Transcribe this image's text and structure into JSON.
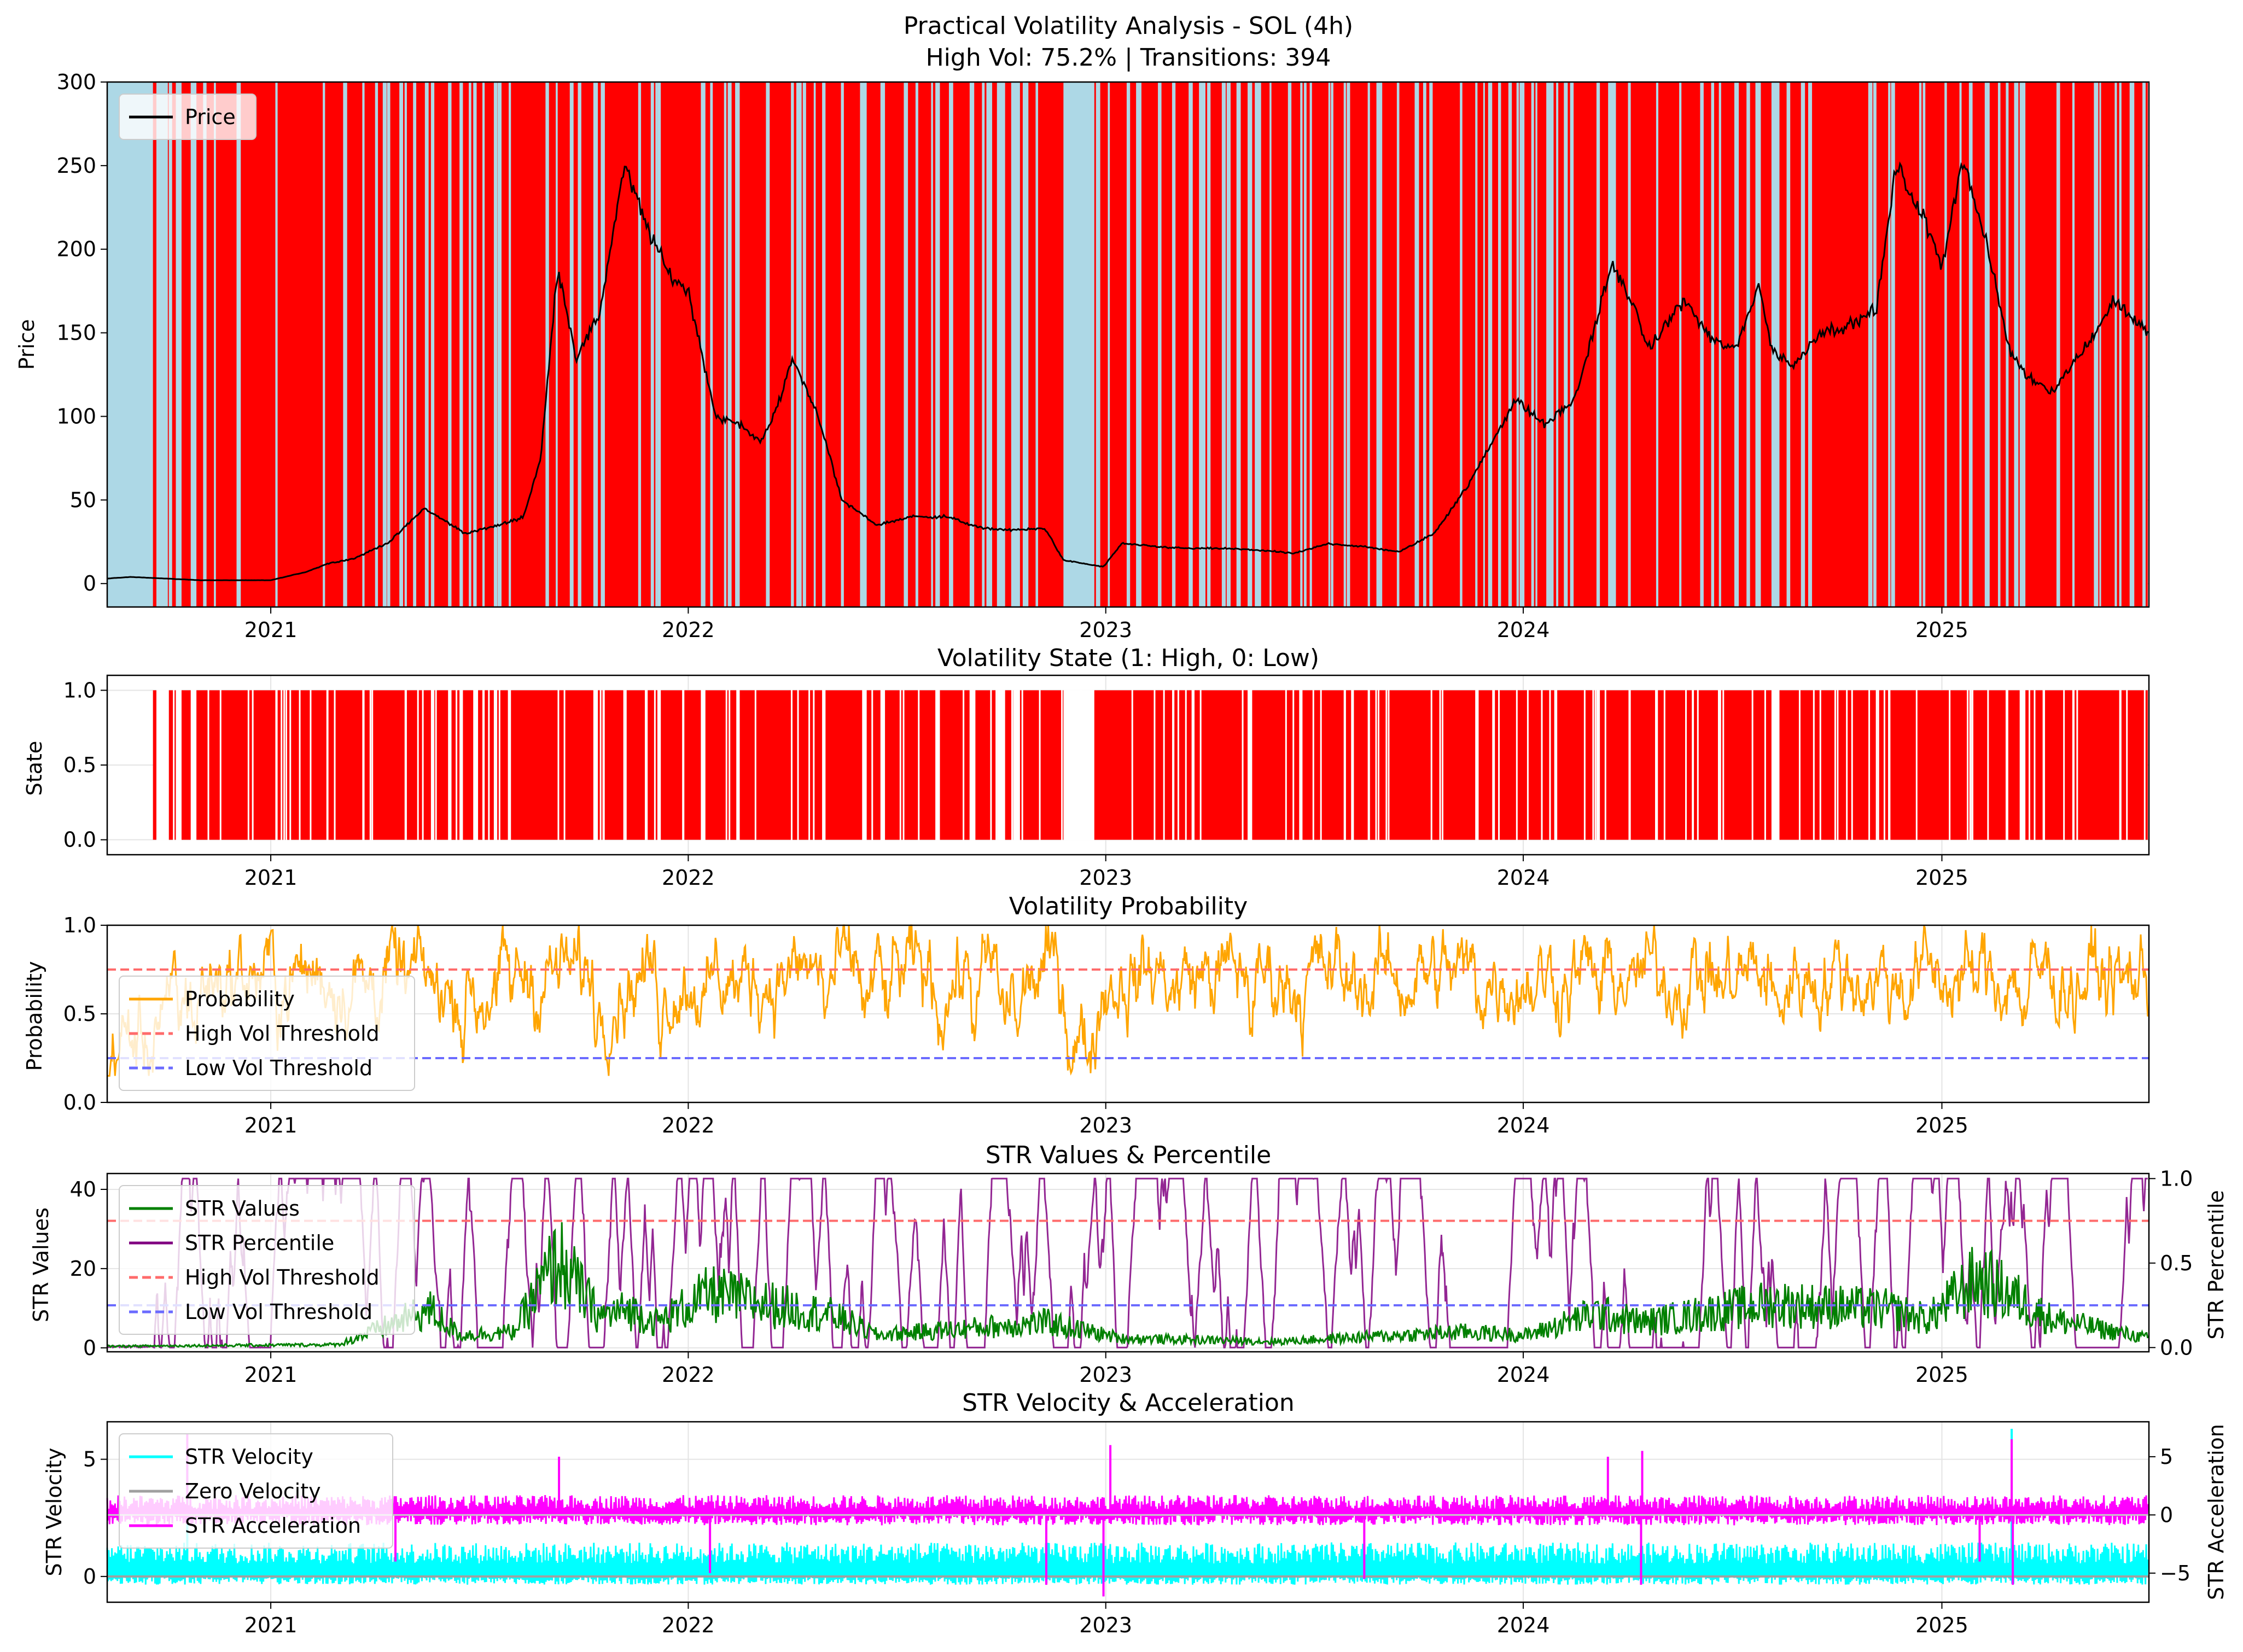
{
  "figure": {
    "title_line1": "Practical Volatility Analysis - SOL (4h)",
    "title_line2": "High Vol: 75.2% | Transitions: 394"
  },
  "colors": {
    "high_vol": "#ff0000",
    "low_vol": "#add8e6",
    "price": "#000000",
    "probability": "#ffa500",
    "high_threshold": "#ff6b6b",
    "low_threshold": "#6b6bff",
    "str_values": "#008000",
    "str_percentile": "#800080",
    "str_velocity": "#00ffff",
    "zero_velocity": "#a0a0a0",
    "str_acceleration": "#ff00ff"
  },
  "x_axis": {
    "range": [
      "2020-08-11",
      "2025-07-01"
    ],
    "ticks": [
      {
        "date": "2021-01-01",
        "label": "2021"
      },
      {
        "date": "2022-01-01",
        "label": "2022"
      },
      {
        "date": "2023-01-01",
        "label": "2023"
      },
      {
        "date": "2024-01-01",
        "label": "2024"
      },
      {
        "date": "2025-01-01",
        "label": "2025"
      }
    ]
  },
  "chart_data": [
    {
      "type": "line",
      "title": "",
      "ylabel": "Price",
      "ylim": [
        -14,
        300
      ],
      "yticks": [
        0,
        50,
        100,
        150,
        200,
        250,
        300
      ],
      "grid": true,
      "legend": {
        "position": "top-left",
        "entries": [
          "Price"
        ]
      },
      "data_start": "2020-08-11",
      "data_end": "2025-06-30",
      "series": [
        {
          "name": "Price",
          "x": [
            "2020-08-11",
            "2020-09-01",
            "2020-10-01",
            "2020-11-01",
            "2020-12-01",
            "2021-01-01",
            "2021-02-01",
            "2021-02-20",
            "2021-03-15",
            "2021-04-15",
            "2021-05-15",
            "2021-06-01",
            "2021-06-20",
            "2021-07-20",
            "2021-08-10",
            "2021-08-25",
            "2021-09-09",
            "2021-09-25",
            "2021-10-15",
            "2021-11-06",
            "2021-11-25",
            "2021-12-15",
            "2022-01-01",
            "2022-01-25",
            "2022-02-15",
            "2022-03-05",
            "2022-03-20",
            "2022-04-02",
            "2022-04-25",
            "2022-05-15",
            "2022-06-15",
            "2022-07-15",
            "2022-08-15",
            "2022-09-15",
            "2022-10-15",
            "2022-11-09",
            "2022-11-25",
            "2022-12-30",
            "2023-01-15",
            "2023-02-15",
            "2023-03-15",
            "2023-04-15",
            "2023-05-15",
            "2023-06-15",
            "2023-07-15",
            "2023-08-15",
            "2023-09-15",
            "2023-10-15",
            "2023-11-15",
            "2023-12-25",
            "2024-01-20",
            "2024-02-15",
            "2024-03-18",
            "2024-04-01",
            "2024-04-20",
            "2024-05-20",
            "2024-06-15",
            "2024-07-05",
            "2024-07-25",
            "2024-08-05",
            "2024-08-25",
            "2024-09-15",
            "2024-10-15",
            "2024-11-05",
            "2024-11-22",
            "2024-12-15",
            "2025-01-01",
            "2025-01-19",
            "2025-02-10",
            "2025-03-01",
            "2025-03-15",
            "2025-04-08",
            "2025-05-15",
            "2025-06-01",
            "2025-06-22",
            "2025-06-30"
          ],
          "values": [
            3,
            4,
            3,
            2,
            2,
            2,
            7,
            12,
            15,
            25,
            45,
            38,
            30,
            35,
            40,
            75,
            190,
            135,
            160,
            250,
            215,
            185,
            175,
            100,
            95,
            85,
            105,
            135,
            100,
            50,
            35,
            40,
            40,
            33,
            32,
            33,
            14,
            10,
            24,
            22,
            21,
            21,
            20,
            18,
            24,
            22,
            19,
            30,
            60,
            110,
            95,
            110,
            190,
            175,
            140,
            170,
            145,
            140,
            180,
            140,
            130,
            150,
            155,
            165,
            250,
            220,
            190,
            255,
            200,
            140,
            125,
            115,
            150,
            170,
            155,
            150
          ]
        }
      ],
      "note_on_shading": "background colored by volatility state: red = high, light blue = low"
    },
    {
      "type": "area",
      "title": "Volatility State (1: High, 0: Low)",
      "ylabel": "State",
      "ylim": [
        -0.1,
        1.1
      ],
      "yticks": [
        0.0,
        0.5,
        1.0
      ],
      "ytick_labels": [
        "0.0",
        "0.5",
        "1.0"
      ],
      "grid": true,
      "state_data_start": "2020-09-20",
      "state_data_end": "2025-06-30",
      "low_state_intervals": [
        [
          "2020-08-11",
          "2020-09-20"
        ],
        [
          "2020-09-23",
          "2020-10-03"
        ],
        [
          "2020-10-10",
          "2020-10-15"
        ],
        [
          "2020-10-23",
          "2020-10-28"
        ],
        [
          "2021-01-05",
          "2021-01-07"
        ],
        [
          "2021-03-22",
          "2021-03-24"
        ],
        [
          "2021-04-28",
          "2021-04-30"
        ],
        [
          "2021-05-21",
          "2021-05-24"
        ],
        [
          "2021-06-05",
          "2021-06-08"
        ],
        [
          "2021-06-15",
          "2021-06-18"
        ],
        [
          "2021-06-27",
          "2021-06-30"
        ],
        [
          "2021-07-05",
          "2021-07-07"
        ],
        [
          "2021-07-15",
          "2021-07-18"
        ],
        [
          "2021-07-28",
          "2021-07-30"
        ],
        [
          "2021-10-10",
          "2021-10-14"
        ],
        [
          "2021-10-18",
          "2021-10-20"
        ],
        [
          "2021-12-05",
          "2021-12-08"
        ],
        [
          "2022-01-12",
          "2022-01-16"
        ],
        [
          "2022-02-12",
          "2022-02-15"
        ],
        [
          "2022-04-28",
          "2022-05-01"
        ],
        [
          "2022-06-02",
          "2022-06-06"
        ],
        [
          "2022-06-18",
          "2022-06-22"
        ],
        [
          "2022-08-05",
          "2022-08-09"
        ],
        [
          "2022-09-04",
          "2022-09-08"
        ],
        [
          "2022-09-28",
          "2022-10-05"
        ],
        [
          "2022-10-12",
          "2022-10-18"
        ],
        [
          "2022-11-25",
          "2022-12-22"
        ],
        [
          "2023-02-28",
          "2023-03-02"
        ],
        [
          "2023-05-05",
          "2023-05-09"
        ],
        [
          "2023-06-20",
          "2023-06-22"
        ],
        [
          "2023-07-28",
          "2023-07-30"
        ],
        [
          "2023-08-18",
          "2023-08-20"
        ],
        [
          "2023-11-20",
          "2023-11-22"
        ],
        [
          "2024-03-05",
          "2024-03-08"
        ],
        [
          "2024-04-02",
          "2024-04-04"
        ],
        [
          "2024-06-20",
          "2024-06-22"
        ],
        [
          "2024-08-05",
          "2024-08-12"
        ],
        [
          "2024-11-15",
          "2024-11-17"
        ],
        [
          "2025-01-25",
          "2025-01-27"
        ],
        [
          "2025-03-10",
          "2025-03-15"
        ],
        [
          "2025-04-25",
          "2025-04-27"
        ],
        [
          "2025-06-05",
          "2025-06-07"
        ]
      ]
    },
    {
      "type": "line",
      "title": "Volatility Probability",
      "ylabel": "Probability",
      "ylim": [
        0.0,
        1.0
      ],
      "yticks": [
        0.0,
        0.5,
        1.0
      ],
      "ytick_labels": [
        "0.0",
        "0.5",
        "1.0"
      ],
      "grid": true,
      "legend": {
        "position": "bottom-left",
        "entries": [
          "Probability",
          "High Vol Threshold",
          "Low Vol Threshold"
        ]
      },
      "thresholds": {
        "high": 0.75,
        "low": 0.25
      },
      "data_start": "2020-08-11",
      "data_end": "2025-06-30",
      "series": [
        {
          "name": "Probability",
          "value_range": [
            0.15,
            1.0
          ],
          "typical_range": [
            0.25,
            1.0
          ]
        },
        {
          "name": "High Vol Threshold",
          "values": [
            0.75
          ]
        },
        {
          "name": "Low Vol Threshold",
          "values": [
            0.25
          ]
        }
      ]
    },
    {
      "type": "line",
      "title": "STR Values & Percentile",
      "ylabel": "STR Values",
      "ylabel_right": "STR Percentile",
      "ylim": [
        -1,
        44
      ],
      "yticks": [
        0,
        20,
        40
      ],
      "ylim_right": [
        -0.025,
        1.03
      ],
      "yticks_right": [
        0.0,
        0.5,
        1.0
      ],
      "ytick_labels_right": [
        "0.0",
        "0.5",
        "1.0"
      ],
      "grid": true,
      "legend": {
        "position": "top-left",
        "entries": [
          "STR Values",
          "STR Percentile",
          "High Vol Threshold",
          "Low Vol Threshold"
        ]
      },
      "thresholds": {
        "high": 0.75,
        "low": 0.25
      },
      "data_start": "2020-08-11",
      "data_end": "2025-06-30",
      "series": [
        {
          "name": "STR Values",
          "axis": "left",
          "typical_range": [
            0,
            5
          ],
          "x": [
            "2020-08-11",
            "2021-03-01",
            "2021-05-20",
            "2021-06-15",
            "2021-08-01",
            "2021-09-09",
            "2021-10-15",
            "2021-11-10",
            "2021-12-05",
            "2022-01-20",
            "2022-05-10",
            "2022-06-15",
            "2022-11-10",
            "2023-01-15",
            "2023-06-01",
            "2023-11-10",
            "2024-01-05",
            "2024-03-05",
            "2024-04-15",
            "2024-08-05",
            "2024-11-15",
            "2024-12-20",
            "2025-02-01",
            "2025-03-10",
            "2025-04-07",
            "2025-06-30"
          ],
          "values": [
            0.5,
            1,
            12,
            4,
            5,
            28,
            10,
            12,
            8,
            17,
            10,
            4,
            8,
            3,
            2,
            5,
            4,
            11,
            8,
            14,
            12,
            9,
            22,
            15,
            9,
            3
          ]
        },
        {
          "name": "STR Percentile",
          "axis": "right",
          "value_range": [
            0.0,
            1.0
          ]
        },
        {
          "name": "High Vol Threshold",
          "axis": "right",
          "values": [
            0.75
          ]
        },
        {
          "name": "Low Vol Threshold",
          "axis": "right",
          "values": [
            0.25
          ]
        }
      ]
    },
    {
      "type": "line",
      "title": "STR Velocity & Acceleration",
      "ylabel": "STR Velocity",
      "ylabel_right": "STR Acceleration",
      "ylim": [
        -1.1,
        6.6
      ],
      "yticks": [
        0,
        5
      ],
      "ylim_right": [
        -7.5,
        8.0
      ],
      "yticks_right": [
        -5,
        0,
        5
      ],
      "ytick_labels_right": [
        "−5",
        "0",
        "5"
      ],
      "grid": true,
      "legend": {
        "position": "top-left",
        "entries": [
          "STR Velocity",
          "Zero Velocity",
          "STR Acceleration"
        ]
      },
      "data_start": "2020-08-11",
      "data_end": "2025-06-30",
      "series": [
        {
          "name": "STR Velocity",
          "axis": "left",
          "typical_range": [
            -0.4,
            1.5
          ],
          "spikes": [
            {
              "x": "2020-10-20",
              "value": 5
            },
            {
              "x": "2025-03-03",
              "value": 6.3
            }
          ]
        },
        {
          "name": "Zero Velocity",
          "axis": "left",
          "values": [
            0
          ]
        },
        {
          "name": "STR Acceleration",
          "axis": "right",
          "typical_range": [
            -1,
            1.5
          ],
          "spikes": [
            {
              "x": "2020-10-20",
              "value": 7
            },
            {
              "x": "2021-04-20",
              "value": -4
            },
            {
              "x": "2021-09-10",
              "value": 5
            },
            {
              "x": "2022-01-20",
              "value": -5
            },
            {
              "x": "2022-11-10",
              "value": -6
            },
            {
              "x": "2022-12-30",
              "value": -7
            },
            {
              "x": "2023-01-05",
              "value": 6
            },
            {
              "x": "2023-08-15",
              "value": -5.5
            },
            {
              "x": "2024-03-15",
              "value": 5
            },
            {
              "x": "2024-04-13",
              "value": -6
            },
            {
              "x": "2024-04-14",
              "value": 5.5
            },
            {
              "x": "2025-02-03",
              "value": -4
            },
            {
              "x": "2025-03-03",
              "value": 6.5
            },
            {
              "x": "2025-03-04",
              "value": -6
            }
          ]
        }
      ]
    }
  ]
}
